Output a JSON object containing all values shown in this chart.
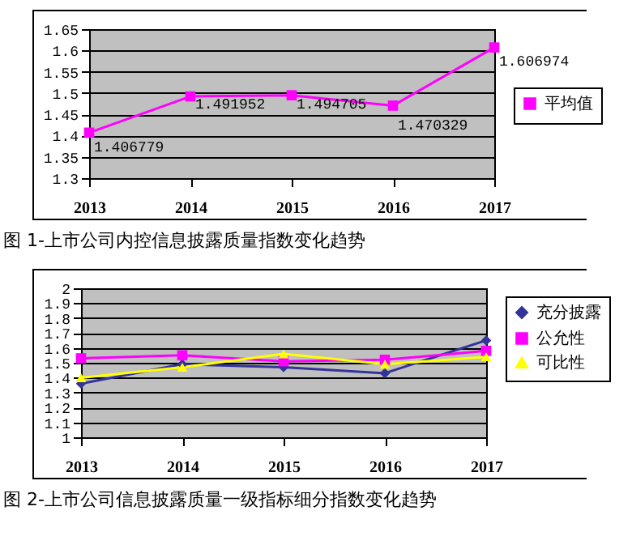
{
  "chart_data": [
    {
      "type": "line",
      "categories": [
        "2013",
        "2014",
        "2015",
        "2016",
        "2017"
      ],
      "ylim": [
        1.3,
        1.65
      ],
      "yticks": [
        1.3,
        1.35,
        1.4,
        1.45,
        1.5,
        1.55,
        1.6,
        1.65
      ],
      "grid": "y",
      "legend": "right",
      "marker": "square",
      "data_labels": true,
      "series": [
        {
          "name": "平均值",
          "color": "#ff00ff",
          "values": [
            1.406779,
            1.491952,
            1.494705,
            1.470329,
            1.606974
          ]
        }
      ],
      "annotations": [
        "图 1-上市公司内控信息披露质量指数变化趋势"
      ]
    },
    {
      "type": "line",
      "categories": [
        "2013",
        "2014",
        "2015",
        "2016",
        "2017"
      ],
      "ylim": [
        1,
        2
      ],
      "yticks": [
        {
          "value": 1,
          "label": "1"
        },
        1.1,
        1.2,
        1.3,
        1.4,
        1.5,
        1.6,
        1.7,
        1.8,
        1.9,
        2
      ],
      "grid": "y",
      "legend": "top right",
      "series": [
        {
          "name": "充分披露",
          "color": "#333399",
          "marker": "diamond",
          "values": [
            1.36,
            1.49,
            1.47,
            1.43,
            1.65
          ]
        },
        {
          "name": "公允性",
          "color": "#ff00ff",
          "marker": "square",
          "values": [
            1.53,
            1.55,
            1.51,
            1.52,
            1.58
          ]
        },
        {
          "name": "可比性",
          "color": "#ffff00",
          "marker": "triangle",
          "values": [
            1.4,
            1.47,
            1.56,
            1.49,
            1.54
          ]
        }
      ],
      "annotations": [
        "图 2-上市公司信息披露质量一级指标细分指数变化趋势"
      ]
    }
  ]
}
